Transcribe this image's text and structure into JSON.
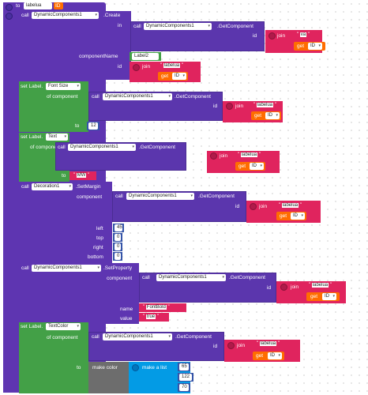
{
  "proc": {
    "to": "to",
    "name": "labelua",
    "param": "ID"
  },
  "create": {
    "call": "call",
    "component": "DynamicComponents1",
    "method": ".Create",
    "in_label": "in",
    "componentName_label": "componentName",
    "id_label": "id",
    "componentName": "Label2",
    "getcomp": {
      "call": "call",
      "component": "DynamicComponents1",
      "method": ".GetComponent",
      "id_label": "id",
      "join": "join",
      "text": "va",
      "get": "get",
      "get_var": "ID"
    },
    "join": "join",
    "text": "labelua",
    "get": "get",
    "get_var": "ID"
  },
  "fontsize": {
    "set": "set Label.",
    "prop": "Font Size",
    "of_component": "of component",
    "to": "to",
    "value": "12",
    "call": "call",
    "component": "DynamicComponents1",
    "method": ".GetComponent",
    "id_label": "id",
    "join": "join",
    "text": "labelua",
    "get": "get",
    "get_var": "ID"
  },
  "text": {
    "set": "set Label.",
    "prop": "Text",
    "of_component": "of component",
    "to": "to",
    "value": "MW",
    "call": "call",
    "component": "DynamicComponents1",
    "method": ".GetComponent",
    "id_label": "id",
    "join": "join",
    "text": "labelua",
    "get": "get",
    "get_var": "ID"
  },
  "margin": {
    "call": "call",
    "component": "Decoration1",
    "method": ".SetMargin",
    "component_label": "component",
    "gc_call": "call",
    "gc_component": "DynamicComponents1",
    "gc_method": ".GetComponent",
    "id_label": "id",
    "join": "join",
    "text": "labelua",
    "get": "get",
    "get_var": "ID",
    "left_label": "left",
    "left": "45",
    "top_label": "top",
    "top": "0",
    "right_label": "right",
    "right": "0",
    "bottom_label": "bottom",
    "bottom": "0"
  },
  "setprop": {
    "call": "call",
    "component": "DynamicComponents1",
    "method": ".SetProperty",
    "component_label": "component",
    "gc_call": "call",
    "gc_component": "DynamicComponents1",
    "gc_method": ".GetComponent",
    "id_label": "id",
    "join": "join",
    "text": "labelua",
    "get": "get",
    "get_var": "ID",
    "name_label": "name",
    "name": "FontBold",
    "value_label": "value",
    "value": "true"
  },
  "textcolor": {
    "set": "set Label.",
    "prop": "TextColor",
    "of_component": "of component",
    "to": "to",
    "call": "call",
    "component": "DynamicComponents1",
    "method": ".GetComponent",
    "id_label": "id",
    "join": "join",
    "text": "labelua",
    "get": "get",
    "get_var": "ID",
    "make_color": "make color",
    "make_list": "make a list",
    "r": "65",
    "g": "122",
    "b": "70"
  },
  "colors": {
    "procedure": "#5e35b1",
    "setter": "#43a047",
    "text": "#e0245e",
    "variable": "#ff6d00",
    "number": "#3554a8",
    "color": "#6d6d6d",
    "list": "#039be5"
  }
}
